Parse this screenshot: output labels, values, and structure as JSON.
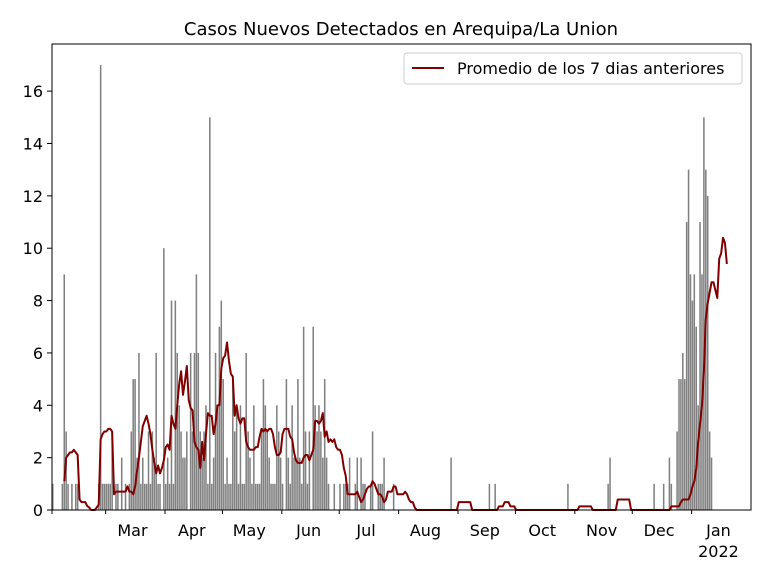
{
  "chart_data": {
    "type": "bar",
    "title": "Casos Nuevos Detectados en Arequipa/La Union",
    "xlabel": "",
    "ylabel": "",
    "x_start": "2021-02-01",
    "x_end": "2022-01-31",
    "ylim": [
      0,
      17.8
    ],
    "yticks": [
      0,
      2,
      4,
      6,
      8,
      10,
      12,
      14,
      16
    ],
    "month_ticks": [
      {
        "label": "Mar",
        "date": "2021-03-01"
      },
      {
        "label": "Apr",
        "date": "2021-04-01"
      },
      {
        "label": "May",
        "date": "2021-05-01"
      },
      {
        "label": "Jun",
        "date": "2021-06-01"
      },
      {
        "label": "Jul",
        "date": "2021-07-01"
      },
      {
        "label": "Aug",
        "date": "2021-08-01"
      },
      {
        "label": "Sep",
        "date": "2021-09-01"
      },
      {
        "label": "Oct",
        "date": "2021-10-01"
      },
      {
        "label": "Nov",
        "date": "2021-11-01"
      },
      {
        "label": "Dec",
        "date": "2021-12-01"
      },
      {
        "label": "Jan",
        "sublabel": "2022",
        "date": "2022-01-01"
      }
    ],
    "grid": false,
    "legend_position": "top-right",
    "bar_color": "#808080",
    "line_color": "#800000",
    "series": [
      {
        "name": "",
        "kind": "bar",
        "values": [
          1,
          0,
          0,
          0,
          0,
          1,
          9,
          3,
          1,
          0,
          1,
          0,
          1,
          1,
          0,
          0,
          0,
          0,
          0,
          0,
          0,
          0,
          0,
          0,
          1,
          17,
          1,
          1,
          1,
          1,
          1,
          3,
          0,
          1,
          1,
          0,
          2,
          0,
          1,
          0,
          1,
          3,
          5,
          5,
          2,
          6,
          1,
          2,
          1,
          1,
          3,
          1,
          3,
          2,
          6,
          1,
          1,
          0,
          10,
          1,
          2,
          1,
          8,
          1,
          8,
          6,
          4,
          3,
          2,
          2,
          3,
          0,
          6,
          3,
          6,
          9,
          6,
          3,
          2,
          3,
          4,
          1,
          15,
          1,
          2,
          6,
          4,
          7,
          8,
          5,
          1,
          2,
          1,
          1,
          5,
          3,
          4,
          1,
          4,
          1,
          1,
          6,
          3,
          2,
          1,
          4,
          1,
          1,
          1,
          3,
          5,
          4,
          3,
          2,
          1,
          1,
          1,
          4,
          3,
          2,
          1,
          0,
          5,
          2,
          1,
          4,
          2,
          2,
          5,
          2,
          1,
          7,
          3,
          1,
          3,
          0,
          7,
          4,
          3,
          4,
          3,
          2,
          5,
          2,
          1,
          0,
          0,
          1,
          0,
          0,
          1,
          0,
          1,
          1,
          1,
          2,
          0,
          0,
          1,
          2,
          0,
          2,
          1,
          1,
          0,
          0,
          1,
          3,
          0,
          0,
          1,
          1,
          1,
          2,
          0,
          0,
          0,
          0,
          1,
          0,
          0,
          0,
          0,
          0,
          0,
          0,
          0,
          0,
          0,
          0,
          0,
          0,
          0,
          0,
          0,
          0,
          0,
          0,
          0,
          0,
          0,
          0,
          0,
          0,
          0,
          0,
          0,
          0,
          2,
          0,
          0,
          0,
          0,
          0,
          0,
          0,
          0,
          0,
          0,
          0,
          0,
          0,
          0,
          0,
          0,
          0,
          0,
          0,
          1,
          0,
          0,
          1,
          0,
          0,
          0,
          0,
          0,
          0,
          0,
          0,
          0,
          0,
          0,
          0,
          0,
          0,
          0,
          0,
          0,
          0,
          0,
          0,
          0,
          0,
          0,
          0,
          0,
          0,
          0,
          0,
          0,
          0,
          0,
          0,
          0,
          0,
          0,
          0,
          0,
          1,
          0,
          0,
          0,
          0,
          0,
          0,
          0,
          0,
          0,
          0,
          0,
          0,
          0,
          0,
          0,
          0,
          0,
          0,
          0,
          0,
          1,
          2,
          0,
          0,
          0,
          0,
          0,
          0,
          0,
          0,
          0,
          0,
          0,
          0,
          0,
          0,
          0,
          0,
          0,
          0,
          0,
          0,
          0,
          0,
          1,
          0,
          0,
          0,
          0,
          1,
          0,
          0,
          2,
          1,
          0,
          0,
          3,
          5,
          5,
          6,
          5,
          11,
          13,
          9,
          8,
          9,
          7,
          4,
          11,
          9,
          15,
          13,
          12,
          3,
          2
        ]
      },
      {
        "name": "Promedio de los 7 dias anteriores",
        "kind": "line",
        "values": [
          null,
          null,
          null,
          null,
          null,
          null,
          1.1,
          2.0,
          2.1,
          2.2,
          2.2,
          2.3,
          2.2,
          2.1,
          0.4,
          0.3,
          0.3,
          0.3,
          0.15,
          0.1,
          0.0,
          0.0,
          0.0,
          0.1,
          0.2,
          2.7,
          2.9,
          3.0,
          3.0,
          3.1,
          3.1,
          3.0,
          0.6,
          0.7,
          0.7,
          0.7,
          0.7,
          0.7,
          0.7,
          0.9,
          0.7,
          0.7,
          0.6,
          0.9,
          1.5,
          2.0,
          2.6,
          3.2,
          3.4,
          3.6,
          3.3,
          2.9,
          2.3,
          1.8,
          1.4,
          1.7,
          1.4,
          1.6,
          1.9,
          2.4,
          2.5,
          2.3,
          3.6,
          3.3,
          3.1,
          4.0,
          4.8,
          5.3,
          4.4,
          4.9,
          5.5,
          4.2,
          3.9,
          3.8,
          2.6,
          2.4,
          2.3,
          1.6,
          2.6,
          1.9,
          2.9,
          3.7,
          3.6,
          3.6,
          2.9,
          3.3,
          4.0,
          4.0,
          5.4,
          5.8,
          5.9,
          6.4,
          5.7,
          5.2,
          5.1,
          3.6,
          4.0,
          3.5,
          3.3,
          3.5,
          3.5,
          2.6,
          2.4,
          2.3,
          2.3,
          2.3,
          2.4,
          2.4,
          2.8,
          3.1,
          3.0,
          3.1,
          3.0,
          3.1,
          3.1,
          2.9,
          2.4,
          2.1,
          2.1,
          2.2,
          2.9,
          3.1,
          3.1,
          3.1,
          2.8,
          2.7,
          2.2,
          1.9,
          1.8,
          1.8,
          1.8,
          2.0,
          2.1,
          2.1,
          1.9,
          2.1,
          2.3,
          3.4,
          3.4,
          3.3,
          3.4,
          3.7,
          2.8,
          3.0,
          2.6,
          2.7,
          2.6,
          2.7,
          2.4,
          2.3,
          2.3,
          2.1,
          1.6,
          1.3,
          0.6,
          0.6,
          0.6,
          0.6,
          0.6,
          0.7,
          0.5,
          0.3,
          0.4,
          0.6,
          0.8,
          0.9,
          0.9,
          1.1,
          1.0,
          0.8,
          0.6,
          0.6,
          0.5,
          0.3,
          0.4,
          0.7,
          0.7,
          0.7,
          0.9,
          0.9,
          0.6,
          0.6,
          0.6,
          0.6,
          0.7,
          0.6,
          0.4,
          0.3,
          0.3,
          0.1,
          0.0,
          0.0,
          0.0,
          0.0,
          0.0,
          0.0,
          0.0,
          0.0,
          0.0,
          0.0,
          0.0,
          0.0,
          0.0,
          0.0,
          0.0,
          0.0,
          0.0,
          0.0,
          0.0,
          0.0,
          0.0,
          0.0,
          0.3,
          0.3,
          0.3,
          0.3,
          0.3,
          0.3,
          0.3,
          0.0,
          0.0,
          0.0,
          0.0,
          0.0,
          0.0,
          0.0,
          0.0,
          0.0,
          0.0,
          0.0,
          0.0,
          0.0,
          0.0,
          0.14,
          0.14,
          0.14,
          0.3,
          0.3,
          0.3,
          0.14,
          0.14,
          0.14,
          0.0,
          0.0,
          0.0,
          0.0,
          0.0,
          0.0,
          0.0,
          0.0,
          0.0,
          0.0,
          0.0,
          0.0,
          0.0,
          0.0,
          0.0,
          0.0,
          0.0,
          0.0,
          0.0,
          0.0,
          0.0,
          0.0,
          0.0,
          0.0,
          0.0,
          0.0,
          0.0,
          0.0,
          0.0,
          0.0,
          0.0,
          0.0,
          0.0,
          0.14,
          0.14,
          0.14,
          0.14,
          0.14,
          0.14,
          0.14,
          0.0,
          0.0,
          0.0,
          0.0,
          0.0,
          0.0,
          0.0,
          0.0,
          0.0,
          0.0,
          0.0,
          0.0,
          0.0,
          0.4,
          0.4,
          0.4,
          0.4,
          0.4,
          0.4,
          0.4,
          0.0,
          0.0,
          0.0,
          0.0,
          0.0,
          0.0,
          0.0,
          0.0,
          0.0,
          0.0,
          0.0,
          0.0,
          0.0,
          0.0,
          0.0,
          0.0,
          0.0,
          0.0,
          0.0,
          0.0,
          0.0,
          0.14,
          0.14,
          0.14,
          0.14,
          0.14,
          0.3,
          0.4,
          0.4,
          0.4,
          0.4,
          0.6,
          0.9,
          1.1,
          1.6,
          2.6,
          3.3,
          4.0,
          5.3,
          7.3,
          7.9,
          8.3,
          8.7,
          8.7,
          8.4,
          8.1,
          9.6,
          9.8,
          10.4,
          10.2,
          9.4
        ]
      }
    ]
  }
}
